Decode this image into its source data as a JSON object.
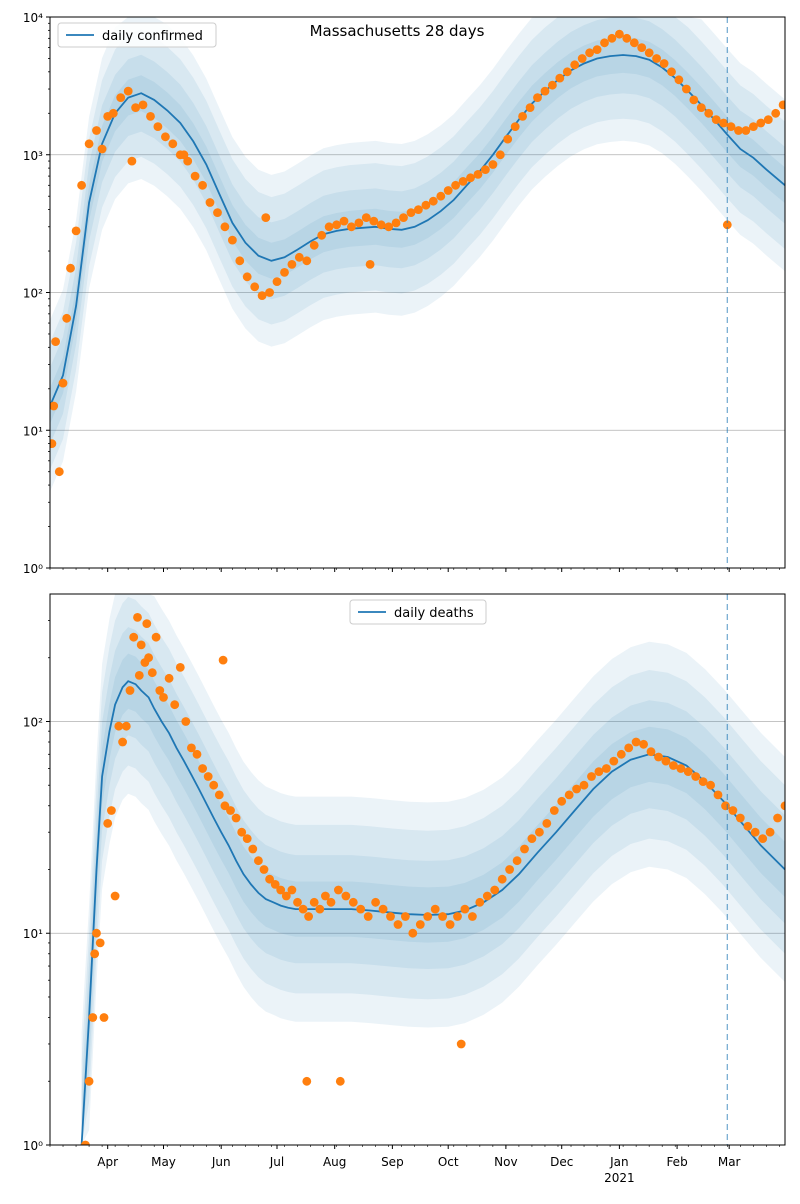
{
  "figure": {
    "title": "Massachusetts 28 days",
    "vline_date": "2021-02-28",
    "colors": {
      "model_line": "#1f77b4",
      "observed_points": "#ff7f0e",
      "band": "#1f77b4",
      "vline": "#1f77b4",
      "grid": "#b0b0b0"
    }
  },
  "chart_data": [
    {
      "type": "line",
      "panel": "top",
      "yscale": "log",
      "xlim": [
        "2020-03-01",
        "2021-03-31"
      ],
      "ylim": [
        1,
        10000
      ],
      "grid": "horizontal major",
      "legend_position": "top-left",
      "legend_label": "daily confirmed",
      "yticks": [
        {
          "value": 1,
          "label": "10⁰"
        },
        {
          "value": 10,
          "label": "10¹"
        },
        {
          "value": 100,
          "label": "10²"
        },
        {
          "value": 1000,
          "label": "10³"
        },
        {
          "value": 10000,
          "label": "10⁴"
        }
      ],
      "model_curve": {
        "x": [
          "2020-03-01",
          "2020-03-08",
          "2020-03-15",
          "2020-03-22",
          "2020-03-29",
          "2020-04-05",
          "2020-04-12",
          "2020-04-19",
          "2020-04-26",
          "2020-05-03",
          "2020-05-10",
          "2020-05-17",
          "2020-05-24",
          "2020-05-31",
          "2020-06-07",
          "2020-06-14",
          "2020-06-21",
          "2020-06-28",
          "2020-07-05",
          "2020-07-12",
          "2020-07-19",
          "2020-07-26",
          "2020-08-02",
          "2020-08-09",
          "2020-08-16",
          "2020-08-23",
          "2020-08-30",
          "2020-09-06",
          "2020-09-13",
          "2020-09-20",
          "2020-09-27",
          "2020-10-04",
          "2020-10-11",
          "2020-10-18",
          "2020-10-25",
          "2020-11-01",
          "2020-11-08",
          "2020-11-15",
          "2020-11-22",
          "2020-11-29",
          "2020-12-06",
          "2020-12-13",
          "2020-12-20",
          "2020-12-27",
          "2021-01-03",
          "2021-01-10",
          "2021-01-17",
          "2021-01-24",
          "2021-01-31",
          "2021-02-07",
          "2021-02-14",
          "2021-02-21",
          "2021-02-28",
          "2021-03-07",
          "2021-03-14",
          "2021-03-21",
          "2021-03-31"
        ],
        "y": [
          15,
          25,
          80,
          450,
          1200,
          2000,
          2600,
          2800,
          2500,
          2100,
          1700,
          1250,
          850,
          520,
          320,
          230,
          185,
          170,
          180,
          205,
          235,
          265,
          280,
          290,
          295,
          300,
          290,
          285,
          300,
          335,
          390,
          470,
          600,
          760,
          1000,
          1350,
          1800,
          2350,
          2900,
          3500,
          4100,
          4600,
          5000,
          5200,
          5300,
          5200,
          4900,
          4300,
          3600,
          2900,
          2300,
          1800,
          1400,
          1100,
          950,
          780,
          600
        ]
      },
      "observed": {
        "x": [
          "2020-03-02",
          "2020-03-04",
          "2020-03-06",
          "2020-03-08",
          "2020-03-10",
          "2020-03-12",
          "2020-03-15",
          "2020-03-18",
          "2020-03-22",
          "2020-03-26",
          "2020-03-29",
          "2020-04-01",
          "2020-04-04",
          "2020-04-08",
          "2020-04-12",
          "2020-04-16",
          "2020-04-20",
          "2020-04-24",
          "2020-04-28",
          "2020-05-02",
          "2020-05-06",
          "2020-05-10",
          "2020-05-14",
          "2020-05-18",
          "2020-05-22",
          "2020-05-26",
          "2020-05-30",
          "2020-06-03",
          "2020-06-07",
          "2020-06-11",
          "2020-06-15",
          "2020-06-19",
          "2020-06-23",
          "2020-06-27",
          "2020-07-01",
          "2020-07-05",
          "2020-07-09",
          "2020-07-13",
          "2020-07-17",
          "2020-07-21",
          "2020-07-25",
          "2020-07-29",
          "2020-08-02",
          "2020-08-06",
          "2020-08-10",
          "2020-08-14",
          "2020-08-18",
          "2020-08-22",
          "2020-08-26",
          "2020-08-30",
          "2020-09-03",
          "2020-09-07",
          "2020-09-11",
          "2020-09-15",
          "2020-09-19",
          "2020-09-23",
          "2020-09-27",
          "2020-10-01",
          "2020-10-05",
          "2020-10-09",
          "2020-10-13",
          "2020-10-17",
          "2020-10-21",
          "2020-10-25",
          "2020-10-29",
          "2020-11-02",
          "2020-11-06",
          "2020-11-10",
          "2020-11-14",
          "2020-11-18",
          "2020-11-22",
          "2020-11-26",
          "2020-11-30",
          "2020-12-04",
          "2020-12-08",
          "2020-12-12",
          "2020-12-16",
          "2020-12-20",
          "2020-12-24",
          "2020-12-28",
          "2021-01-01",
          "2021-01-05",
          "2021-01-09",
          "2021-01-13",
          "2021-01-17",
          "2021-01-21",
          "2021-01-25",
          "2021-01-29",
          "2021-02-02",
          "2021-02-06",
          "2021-02-10",
          "2021-02-14",
          "2021-02-18",
          "2021-02-22",
          "2021-02-26",
          "2021-03-02",
          "2021-03-06",
          "2021-03-10",
          "2021-03-14",
          "2021-03-18",
          "2021-03-22",
          "2021-03-26",
          "2021-03-30",
          "2021-02-28",
          "2020-03-03",
          "2020-04-14",
          "2020-05-12",
          "2020-06-25",
          "2020-08-20"
        ],
        "y": [
          8,
          44,
          5,
          22,
          65,
          150,
          280,
          600,
          1200,
          1500,
          1100,
          1900,
          2000,
          2600,
          2900,
          2200,
          2300,
          1900,
          1600,
          1350,
          1200,
          1000,
          900,
          700,
          600,
          450,
          380,
          300,
          240,
          170,
          130,
          110,
          95,
          100,
          120,
          140,
          160,
          180,
          170,
          220,
          260,
          300,
          310,
          330,
          300,
          320,
          350,
          330,
          310,
          300,
          320,
          350,
          380,
          400,
          430,
          460,
          500,
          550,
          600,
          640,
          680,
          720,
          780,
          850,
          1000,
          1300,
          1600,
          1900,
          2200,
          2600,
          2900,
          3200,
          3600,
          4000,
          4500,
          5000,
          5500,
          5800,
          6500,
          7000,
          7500,
          7000,
          6500,
          6000,
          5500,
          5000,
          4600,
          4000,
          3500,
          3000,
          2500,
          2200,
          2000,
          1800,
          1700,
          1600,
          1500,
          1500,
          1600,
          1700,
          1800,
          2000,
          2300,
          310,
          15,
          900,
          1000,
          350,
          160
        ]
      }
    },
    {
      "type": "line",
      "panel": "bottom",
      "yscale": "log",
      "xlim": [
        "2020-03-01",
        "2021-03-31"
      ],
      "ylim": [
        1,
        400
      ],
      "grid": "horizontal major",
      "legend_position": "top-center",
      "legend_label": "daily deaths",
      "yticks": [
        {
          "value": 1,
          "label": "10⁰"
        },
        {
          "value": 10,
          "label": "10¹"
        },
        {
          "value": 100,
          "label": "10²"
        }
      ],
      "model_curve": {
        "x": [
          "2020-03-18",
          "2020-03-22",
          "2020-03-26",
          "2020-03-29",
          "2020-04-02",
          "2020-04-05",
          "2020-04-09",
          "2020-04-12",
          "2020-04-16",
          "2020-04-19",
          "2020-04-23",
          "2020-04-26",
          "2020-04-30",
          "2020-05-04",
          "2020-05-08",
          "2020-05-12",
          "2020-05-16",
          "2020-05-20",
          "2020-05-24",
          "2020-05-28",
          "2020-06-01",
          "2020-06-05",
          "2020-06-09",
          "2020-06-13",
          "2020-06-17",
          "2020-06-21",
          "2020-06-25",
          "2020-06-29",
          "2020-07-03",
          "2020-07-07",
          "2020-07-11",
          "2020-07-15",
          "2020-07-19",
          "2020-07-23",
          "2020-07-27",
          "2020-08-01",
          "2020-08-10",
          "2020-08-20",
          "2020-09-01",
          "2020-09-10",
          "2020-09-20",
          "2020-10-01",
          "2020-10-10",
          "2020-10-20",
          "2020-10-30",
          "2020-11-08",
          "2020-11-18",
          "2020-11-28",
          "2020-12-08",
          "2020-12-18",
          "2020-12-28",
          "2021-01-07",
          "2021-01-17",
          "2021-01-27",
          "2021-02-06",
          "2021-02-16",
          "2021-02-26",
          "2021-03-08",
          "2021-03-18",
          "2021-03-31"
        ],
        "y": [
          1,
          4,
          20,
          55,
          90,
          120,
          145,
          155,
          150,
          140,
          130,
          115,
          100,
          88,
          75,
          65,
          56,
          48,
          41,
          35,
          30,
          26,
          22,
          19,
          17,
          15.5,
          14.5,
          14,
          13.5,
          13.2,
          13,
          13,
          13,
          13,
          13,
          13,
          13,
          12.8,
          12.5,
          12.3,
          12.2,
          12.3,
          12.8,
          14,
          16,
          19,
          24,
          30,
          38,
          48,
          58,
          66,
          70,
          68,
          62,
          52,
          42,
          33,
          26,
          20
        ]
      },
      "observed": {
        "x": [
          "2020-03-20",
          "2020-03-22",
          "2020-03-24",
          "2020-03-26",
          "2020-03-28",
          "2020-03-30",
          "2020-04-01",
          "2020-04-03",
          "2020-04-05",
          "2020-04-07",
          "2020-04-09",
          "2020-04-11",
          "2020-04-13",
          "2020-04-15",
          "2020-04-17",
          "2020-04-19",
          "2020-04-21",
          "2020-04-23",
          "2020-04-25",
          "2020-04-27",
          "2020-04-29",
          "2020-05-01",
          "2020-05-04",
          "2020-05-07",
          "2020-05-10",
          "2020-05-13",
          "2020-05-16",
          "2020-05-19",
          "2020-05-22",
          "2020-05-25",
          "2020-05-28",
          "2020-05-31",
          "2020-06-03",
          "2020-06-06",
          "2020-06-09",
          "2020-06-12",
          "2020-06-15",
          "2020-06-18",
          "2020-06-21",
          "2020-06-24",
          "2020-06-27",
          "2020-06-30",
          "2020-07-03",
          "2020-07-06",
          "2020-07-09",
          "2020-07-12",
          "2020-07-15",
          "2020-07-18",
          "2020-07-21",
          "2020-07-24",
          "2020-07-27",
          "2020-07-30",
          "2020-08-03",
          "2020-08-07",
          "2020-08-11",
          "2020-08-15",
          "2020-08-19",
          "2020-08-23",
          "2020-08-27",
          "2020-08-31",
          "2020-09-04",
          "2020-09-08",
          "2020-09-12",
          "2020-09-16",
          "2020-09-20",
          "2020-09-24",
          "2020-09-28",
          "2020-10-02",
          "2020-10-06",
          "2020-10-10",
          "2020-10-14",
          "2020-10-18",
          "2020-10-22",
          "2020-10-26",
          "2020-10-30",
          "2020-11-03",
          "2020-11-07",
          "2020-11-11",
          "2020-11-15",
          "2020-11-19",
          "2020-11-23",
          "2020-11-27",
          "2020-12-01",
          "2020-12-05",
          "2020-12-09",
          "2020-12-13",
          "2020-12-17",
          "2020-12-21",
          "2020-12-25",
          "2020-12-29",
          "2021-01-02",
          "2021-01-06",
          "2021-01-10",
          "2021-01-14",
          "2021-01-18",
          "2021-01-22",
          "2021-01-26",
          "2021-01-30",
          "2021-02-03",
          "2021-02-07",
          "2021-02-11",
          "2021-02-15",
          "2021-02-19",
          "2021-02-23",
          "2021-02-27",
          "2021-03-03",
          "2021-03-07",
          "2021-03-11",
          "2021-03-15",
          "2021-03-19",
          "2021-03-23",
          "2021-03-27",
          "2021-03-31",
          "2020-07-17",
          "2020-08-04",
          "2020-10-08",
          "2020-04-18",
          "2020-04-22",
          "2020-06-02",
          "2020-03-25"
        ],
        "y": [
          1,
          2,
          4,
          10,
          9,
          4,
          33,
          38,
          15,
          95,
          80,
          95,
          140,
          250,
          310,
          230,
          190,
          200,
          170,
          250,
          140,
          130,
          160,
          120,
          180,
          100,
          75,
          70,
          60,
          55,
          50,
          45,
          40,
          38,
          35,
          30,
          28,
          25,
          22,
          20,
          18,
          17,
          16,
          15,
          16,
          14,
          13,
          12,
          14,
          13,
          15,
          14,
          16,
          15,
          14,
          13,
          12,
          14,
          13,
          12,
          11,
          12,
          10,
          11,
          12,
          13,
          12,
          11,
          12,
          13,
          12,
          14,
          15,
          16,
          18,
          20,
          22,
          25,
          28,
          30,
          33,
          38,
          42,
          45,
          48,
          50,
          55,
          58,
          60,
          65,
          70,
          75,
          80,
          78,
          72,
          68,
          65,
          62,
          60,
          58,
          55,
          52,
          50,
          45,
          40,
          38,
          35,
          32,
          30,
          28,
          30,
          35,
          40,
          2,
          2,
          3,
          165,
          290,
          195,
          8
        ]
      }
    }
  ],
  "xaxis": {
    "ticks": [
      {
        "date": "2020-04-01",
        "label": "Apr"
      },
      {
        "date": "2020-05-01",
        "label": "May"
      },
      {
        "date": "2020-06-01",
        "label": "Jun"
      },
      {
        "date": "2020-07-01",
        "label": "Jul"
      },
      {
        "date": "2020-08-01",
        "label": "Aug"
      },
      {
        "date": "2020-09-01",
        "label": "Sep"
      },
      {
        "date": "2020-10-01",
        "label": "Oct"
      },
      {
        "date": "2020-11-01",
        "label": "Nov"
      },
      {
        "date": "2020-12-01",
        "label": "Dec"
      },
      {
        "date": "2021-01-01",
        "label": "Jan"
      },
      {
        "date": "2021-02-01",
        "label": "Feb"
      },
      {
        "date": "2021-03-01",
        "label": "Mar"
      }
    ],
    "year_label": {
      "date": "2021-01-01",
      "label": "2021"
    }
  }
}
